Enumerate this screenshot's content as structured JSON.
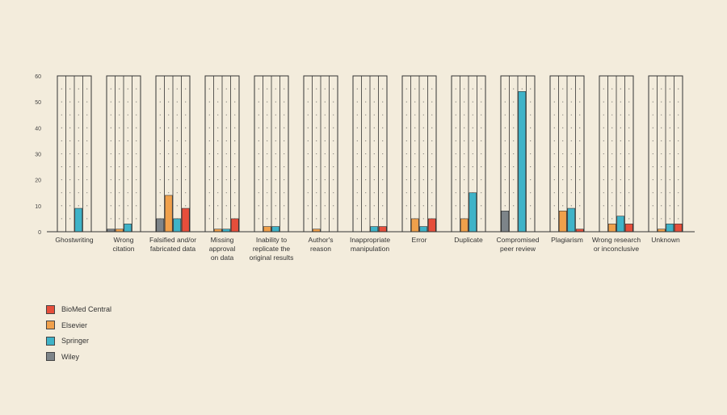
{
  "chart_data": {
    "type": "bar",
    "title": "",
    "xlabel": "",
    "ylabel": "",
    "ylim": [
      0,
      60
    ],
    "yticks": [
      0,
      10,
      20,
      30,
      40,
      50,
      60
    ],
    "grid": "dotted",
    "legend_position": "bottom-left",
    "categories": [
      [
        "Ghostwriting"
      ],
      [
        "Wrong",
        "citation"
      ],
      [
        "Falsified and/or",
        "fabricated data"
      ],
      [
        "Missing",
        "approval",
        "on data"
      ],
      [
        "Inability to",
        "replicate the",
        "original results"
      ],
      [
        "Author's",
        "reason"
      ],
      [
        "Inappropriate",
        "manipulation"
      ],
      [
        "Error"
      ],
      [
        "Duplicate"
      ],
      [
        "Compromised",
        "peer review"
      ],
      [
        "Plagiarism"
      ],
      [
        "Wrong research",
        "or inconclusive"
      ],
      [
        "Unknown"
      ]
    ],
    "series": [
      {
        "name": "Wiley",
        "color": "#7d8489",
        "values": [
          0,
          1,
          5,
          0,
          0,
          0,
          0,
          0,
          0,
          8,
          0,
          0,
          0
        ]
      },
      {
        "name": "Elsevier",
        "color": "#f0a04b",
        "values": [
          0,
          1,
          14,
          1,
          2,
          1,
          0,
          5,
          5,
          0,
          8,
          3,
          1
        ]
      },
      {
        "name": "Springer",
        "color": "#3fb3c8",
        "values": [
          9,
          3,
          5,
          1,
          2,
          0,
          2,
          2,
          15,
          54,
          9,
          6,
          3
        ]
      },
      {
        "name": "BioMed Central",
        "color": "#e64e3b",
        "values": [
          0,
          0,
          9,
          5,
          0,
          0,
          2,
          5,
          0,
          0,
          1,
          3,
          3
        ]
      }
    ]
  },
  "legend": [
    {
      "label": "BioMed Central",
      "color": "#e64e3b"
    },
    {
      "label": "Elsevier",
      "color": "#f0a04b"
    },
    {
      "label": "Springer",
      "color": "#3fb3c8"
    },
    {
      "label": "Wiley",
      "color": "#7d8489"
    }
  ]
}
